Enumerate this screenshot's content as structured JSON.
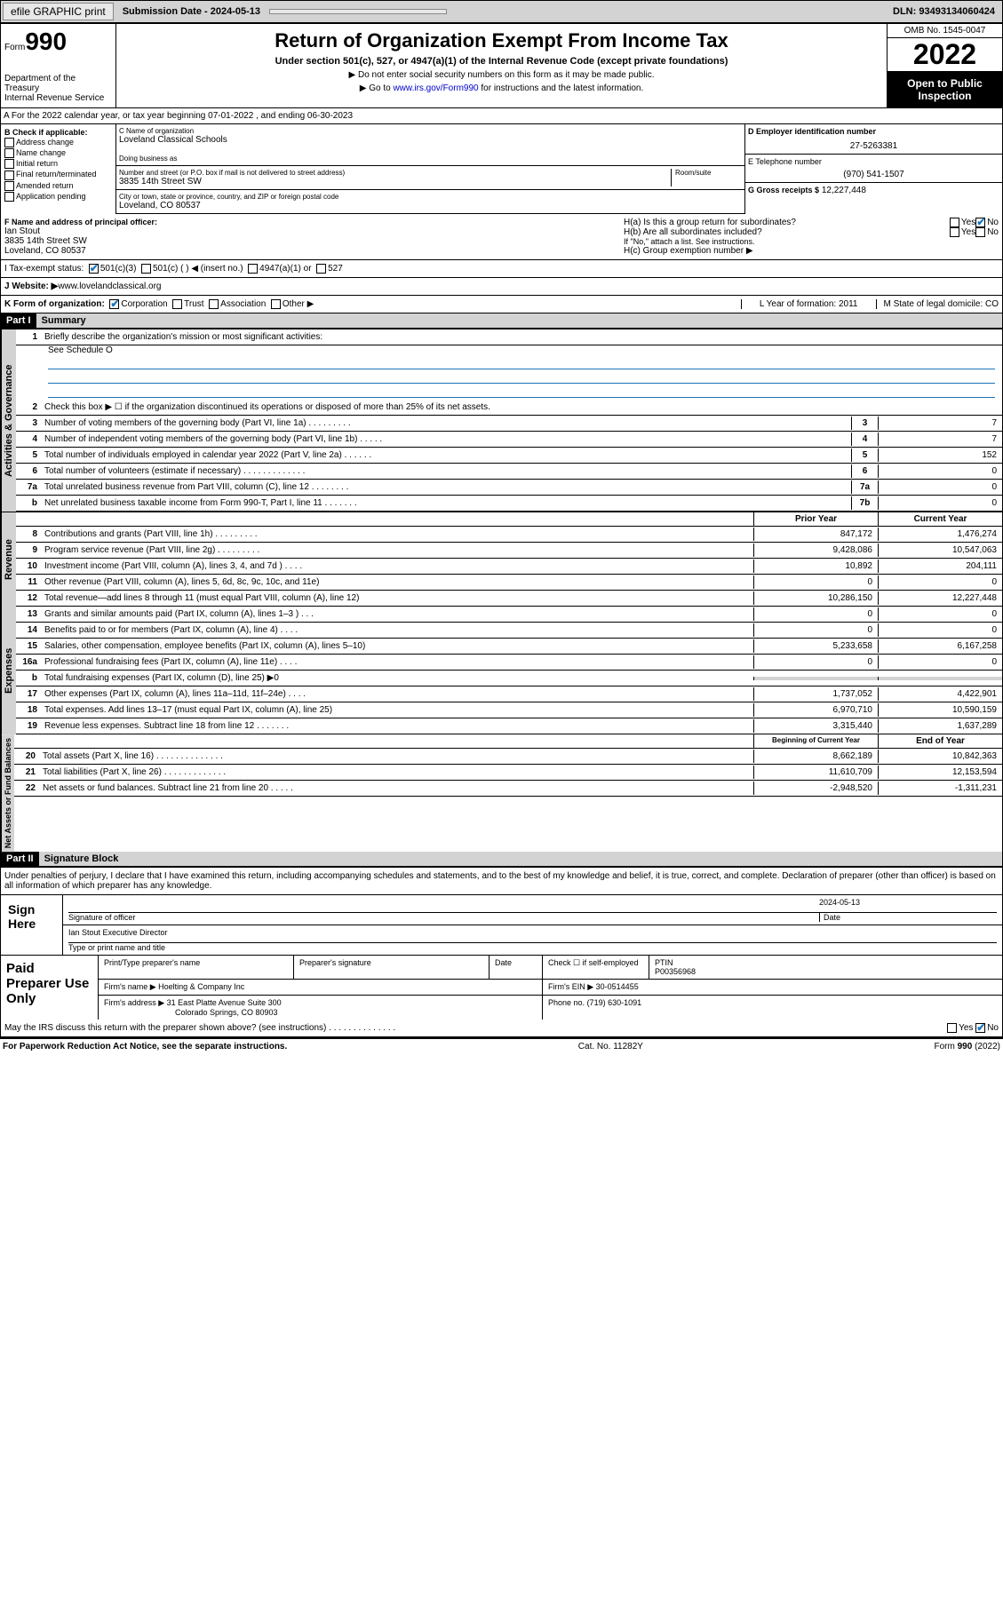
{
  "topbar": {
    "efile": "efile GRAPHIC print",
    "submission": "Submission Date - 2024-05-13",
    "dln": "DLN: 93493134060424"
  },
  "header": {
    "form_label": "Form",
    "form_num": "990",
    "dept": "Department of the Treasury\nInternal Revenue Service",
    "title": "Return of Organization Exempt From Income Tax",
    "sub": "Under section 501(c), 527, or 4947(a)(1) of the Internal Revenue Code (except private foundations)",
    "note1": "▶ Do not enter social security numbers on this form as it may be made public.",
    "note2": "▶ Go to www.irs.gov/Form990 for instructions and the latest information.",
    "link": "www.irs.gov/Form990",
    "omb": "OMB No. 1545-0047",
    "year": "2022",
    "open": "Open to Public Inspection"
  },
  "rowA": "A For the 2022 calendar year, or tax year beginning 07-01-2022    , and ending 06-30-2023",
  "colB": {
    "heading": "B Check if applicable:",
    "items": [
      "Address change",
      "Name change",
      "Initial return",
      "Final return/terminated",
      "Amended return",
      "Application pending"
    ]
  },
  "colC": {
    "name_label": "C Name of organization",
    "name": "Loveland Classical Schools",
    "dba_label": "Doing business as",
    "addr_label": "Number and street (or P.O. box if mail is not delivered to street address)",
    "room_label": "Room/suite",
    "addr": "3835 14th Street SW",
    "city_label": "City or town, state or province, country, and ZIP or foreign postal code",
    "city": "Loveland, CO  80537"
  },
  "colD": {
    "ein_label": "D Employer identification number",
    "ein": "27-5263381",
    "tel_label": "E Telephone number",
    "tel": "(970) 541-1507",
    "gross_label": "G Gross receipts $",
    "gross": "12,227,448"
  },
  "rowF": {
    "f_label": "F  Name and address of principal officer:",
    "f_name": "Ian Stout",
    "f_addr1": "3835 14th Street SW",
    "f_addr2": "Loveland, CO  80537",
    "ha": "H(a)  Is this a group return for subordinates?",
    "hb": "H(b)  Are all subordinates included?",
    "hb_note": "If \"No,\" attach a list. See instructions.",
    "hc": "H(c)  Group exemption number ▶"
  },
  "rowI": {
    "label": "I    Tax-exempt status:",
    "opts": [
      "501(c)(3)",
      "501(c) (  ) ◀ (insert no.)",
      "4947(a)(1) or",
      "527"
    ]
  },
  "rowJ": {
    "label": "J    Website: ▶ ",
    "site": "www.lovelandclassical.org"
  },
  "rowK": {
    "label": "K Form of organization:",
    "opts": [
      "Corporation",
      "Trust",
      "Association",
      "Other ▶"
    ],
    "l": "L Year of formation: 2011",
    "m": "M State of legal domicile: CO"
  },
  "part1": {
    "header": "Part I",
    "title": "Summary"
  },
  "summary": {
    "line1": "Briefly describe the organization's mission or most significant activities:",
    "line1_val": "See Schedule O",
    "line2": "Check this box ▶ ☐  if the organization discontinued its operations or disposed of more than 25% of its net assets.",
    "rows_gov": [
      {
        "n": "3",
        "d": "Number of voting members of the governing body (Part VI, line 1a)   .    .    .    .    .    .    .    .    .",
        "c": "3",
        "v": "7"
      },
      {
        "n": "4",
        "d": "Number of independent voting members of the governing body (Part VI, line 1b)   .    .    .    .    .",
        "c": "4",
        "v": "7"
      },
      {
        "n": "5",
        "d": "Total number of individuals employed in calendar year 2022 (Part V, line 2a)   .    .    .    .    .    .",
        "c": "5",
        "v": "152"
      },
      {
        "n": "6",
        "d": "Total number of volunteers (estimate if necessary)   .    .    .    .    .    .    .    .    .    .    .    .    .",
        "c": "6",
        "v": "0"
      },
      {
        "n": "7a",
        "d": "Total unrelated business revenue from Part VIII, column (C), line 12   .    .    .    .    .    .    .    .",
        "c": "7a",
        "v": "0"
      },
      {
        "n": "b",
        "d": "Net unrelated business taxable income from Form 990-T, Part I, line 11   .    .    .    .    .    .    .",
        "c": "7b",
        "v": "0"
      }
    ],
    "hdr_prior": "Prior Year",
    "hdr_curr": "Current Year",
    "rows_rev": [
      {
        "n": "8",
        "d": "Contributions and grants (Part VIII, line 1h)   .    .    .    .    .    .    .    .    .",
        "p": "847,172",
        "c": "1,476,274"
      },
      {
        "n": "9",
        "d": "Program service revenue (Part VIII, line 2g)   .    .    .    .    .    .    .    .    .",
        "p": "9,428,086",
        "c": "10,547,063"
      },
      {
        "n": "10",
        "d": "Investment income (Part VIII, column (A), lines 3, 4, and 7d )   .    .    .    .",
        "p": "10,892",
        "c": "204,111"
      },
      {
        "n": "11",
        "d": "Other revenue (Part VIII, column (A), lines 5, 6d, 8c, 9c, 10c, and 11e)",
        "p": "0",
        "c": "0"
      },
      {
        "n": "12",
        "d": "Total revenue—add lines 8 through 11 (must equal Part VIII, column (A), line 12)",
        "p": "10,286,150",
        "c": "12,227,448"
      }
    ],
    "rows_exp": [
      {
        "n": "13",
        "d": "Grants and similar amounts paid (Part IX, column (A), lines 1–3 )   .    .    .",
        "p": "0",
        "c": "0"
      },
      {
        "n": "14",
        "d": "Benefits paid to or for members (Part IX, column (A), line 4)   .    .    .    .",
        "p": "0",
        "c": "0"
      },
      {
        "n": "15",
        "d": "Salaries, other compensation, employee benefits (Part IX, column (A), lines 5–10)",
        "p": "5,233,658",
        "c": "6,167,258"
      },
      {
        "n": "16a",
        "d": "Professional fundraising fees (Part IX, column (A), line 11e)   .    .    .    .",
        "p": "0",
        "c": "0"
      },
      {
        "n": "b",
        "d": "Total fundraising expenses (Part IX, column (D), line 25) ▶0",
        "p": "",
        "c": "",
        "grey": true
      },
      {
        "n": "17",
        "d": "Other expenses (Part IX, column (A), lines 11a–11d, 11f–24e)   .    .    .    .",
        "p": "1,737,052",
        "c": "4,422,901"
      },
      {
        "n": "18",
        "d": "Total expenses. Add lines 13–17 (must equal Part IX, column (A), line 25)",
        "p": "6,970,710",
        "c": "10,590,159"
      },
      {
        "n": "19",
        "d": "Revenue less expenses. Subtract line 18 from line 12   .    .    .    .    .    .    .",
        "p": "3,315,440",
        "c": "1,637,289"
      }
    ],
    "hdr_beg": "Beginning of Current Year",
    "hdr_end": "End of Year",
    "rows_na": [
      {
        "n": "20",
        "d": "Total assets (Part X, line 16)   .    .    .    .    .    .    .    .    .    .    .    .    .    .",
        "p": "8,662,189",
        "c": "10,842,363"
      },
      {
        "n": "21",
        "d": "Total liabilities (Part X, line 26)   .    .    .    .    .    .    .    .    .    .    .    .    .",
        "p": "11,610,709",
        "c": "12,153,594"
      },
      {
        "n": "22",
        "d": "Net assets or fund balances. Subtract line 21 from line 20   .    .    .    .    .",
        "p": "-2,948,520",
        "c": "-1,311,231"
      }
    ]
  },
  "part2": {
    "header": "Part II",
    "title": "Signature Block"
  },
  "sig": {
    "penalty": "Under penalties of perjury, I declare that I have examined this return, including accompanying schedules and statements, and to the best of my knowledge and belief, it is true, correct, and complete. Declaration of preparer (other than officer) is based on all information of which preparer has any knowledge.",
    "sign_here": "Sign Here",
    "sig_officer": "Signature of officer",
    "date_label": "Date",
    "date": "2024-05-13",
    "name": "Ian Stout  Executive Director",
    "name_label": "Type or print name and title",
    "paid": "Paid Preparer Use Only",
    "prep_name_label": "Print/Type preparer's name",
    "prep_sig_label": "Preparer's signature",
    "check_label": "Check ☐ if self-employed",
    "ptin_label": "PTIN",
    "ptin": "P00356968",
    "firm_name_label": "Firm's name    ▶",
    "firm_name": "Hoelting & Company Inc",
    "firm_ein_label": "Firm's EIN ▶",
    "firm_ein": "30-0514455",
    "firm_addr_label": "Firm's address ▶",
    "firm_addr1": "31 East Platte Avenue Suite 300",
    "firm_addr2": "Colorado Springs, CO  80903",
    "phone_label": "Phone no.",
    "phone": "(719) 630-1091",
    "may_irs": "May the IRS discuss this return with the preparer shown above? (see instructions)   .    .    .    .    .    .    .    .    .    .    .    .    .    ."
  },
  "footer": {
    "left": "For Paperwork Reduction Act Notice, see the separate instructions.",
    "mid": "Cat. No. 11282Y",
    "right": "Form 990 (2022)"
  },
  "labels": {
    "vert_gov": "Activities & Governance",
    "vert_rev": "Revenue",
    "vert_exp": "Expenses",
    "vert_na": "Net Assets or Fund Balances",
    "yes": "Yes",
    "no": "No"
  }
}
